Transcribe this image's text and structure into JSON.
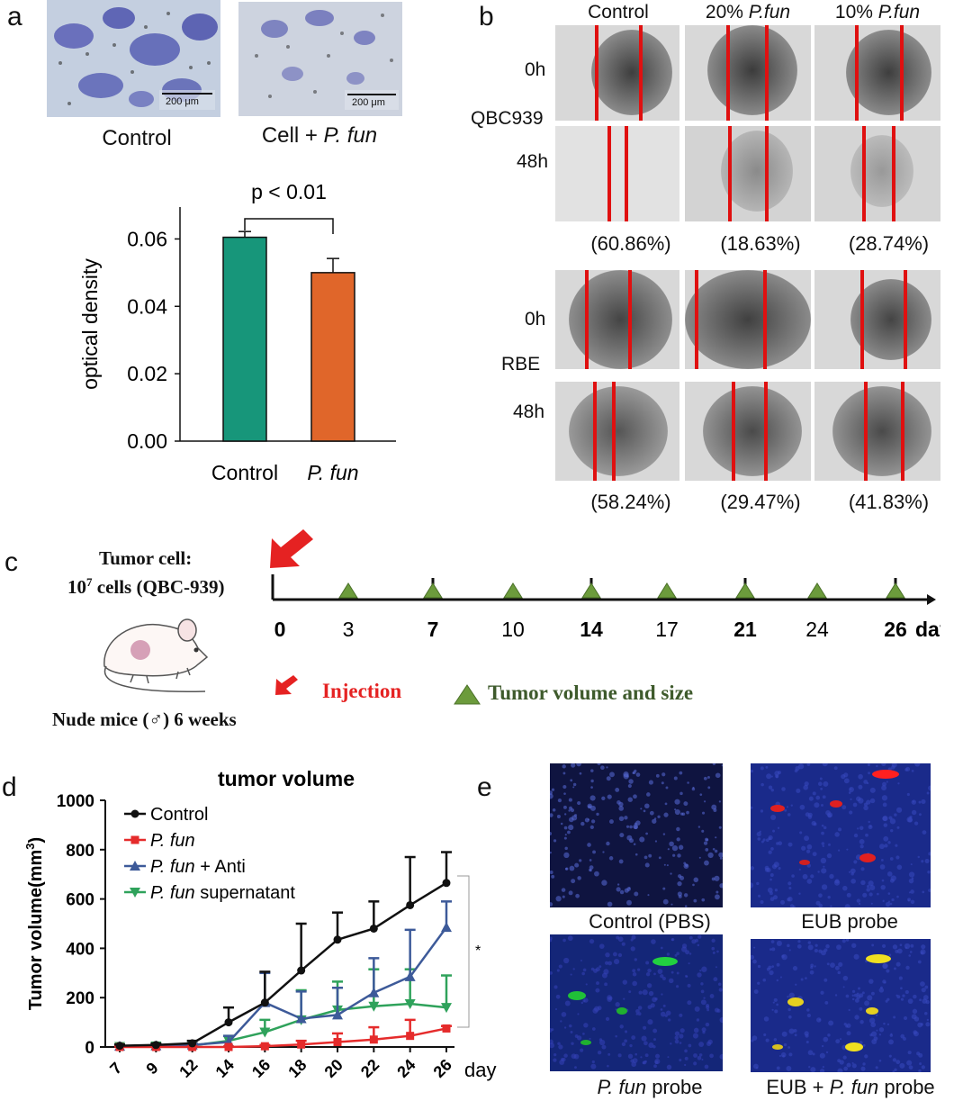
{
  "panels": {
    "a": "a",
    "b": "b",
    "c": "c",
    "d": "d",
    "e": "e"
  },
  "panel_a": {
    "images": [
      {
        "caption": "Control",
        "scale": "200 μm"
      },
      {
        "caption_prefix": "Cell + ",
        "caption_italic": "P. fun",
        "scale": "200 μm"
      }
    ],
    "chart_data": {
      "type": "bar",
      "categories": [
        "Control",
        "P. fun"
      ],
      "values": [
        0.0605,
        0.05
      ],
      "errors": [
        0.0017,
        0.0042
      ],
      "ylabel": "optical density",
      "ylim": [
        0,
        0.07
      ],
      "yticks": [
        "0.00",
        "0.02",
        "0.04",
        "0.06"
      ],
      "annotation": "p < 0.01",
      "colors": [
        "#17967a",
        "#e0662a"
      ]
    }
  },
  "panel_b": {
    "columns": [
      "Control",
      "20% ",
      "10% "
    ],
    "column_italic": [
      "",
      "P.fun",
      "P.fun"
    ],
    "qbc": {
      "cell_line": "QBC939",
      "t0": "0h",
      "t48": "48h",
      "percents": [
        "(60.86%)",
        "(18.63%)",
        "(28.74%)"
      ]
    },
    "rbe": {
      "cell_line": "RBE",
      "t0": "0h",
      "t48": "48h",
      "percents": [
        "(58.24%)",
        "(29.47%)",
        "(41.83%)"
      ]
    }
  },
  "panel_c": {
    "tumor_title": "Tumor cell:",
    "cells_base": "10",
    "cells_exp": "7",
    "cells_rest": " cells (QBC-939)",
    "days": [
      "0",
      "3",
      "7",
      "10",
      "14",
      "17",
      "21",
      "24",
      "26"
    ],
    "days_label": "days",
    "injection": "Injection",
    "tumor_volume": "Tumor volume and size",
    "mice_prefix": "Nude mice (",
    "mice_symbol": "♂",
    "mice_suffix": ") 6 weeks",
    "colors": {
      "injection": "#e52222",
      "triangle": "#6c9b3c",
      "legend_text": "#3e5a2c"
    }
  },
  "panel_d": {
    "chart_data": {
      "type": "line",
      "title": "tumor volume",
      "x": [
        7,
        9,
        12,
        14,
        16,
        18,
        20,
        22,
        24,
        26
      ],
      "xlabel": "day",
      "ylabel_prefix": "Tumor volume(mm",
      "ylabel_exp": "3",
      "ylabel_suffix": ")",
      "ylim": [
        0,
        1000
      ],
      "yticks": [
        0,
        200,
        400,
        600,
        800,
        1000
      ],
      "sig_marker": "*",
      "series": [
        {
          "name": "Control",
          "name_italic": "",
          "name_rest": "Control",
          "color": "#111111",
          "marker": "circle",
          "values": [
            5,
            8,
            15,
            100,
            180,
            310,
            435,
            480,
            575,
            665
          ],
          "errors": [
            5,
            6,
            10,
            60,
            125,
            190,
            110,
            110,
            195,
            125
          ]
        },
        {
          "name": "P. fun",
          "name_italic": "P. fun",
          "name_rest": "",
          "color": "#e52b2b",
          "marker": "square",
          "values": [
            0,
            0,
            0,
            0,
            3,
            10,
            20,
            30,
            45,
            75
          ],
          "errors": [
            2,
            2,
            2,
            2,
            5,
            15,
            35,
            50,
            65,
            10
          ]
        },
        {
          "name": "P. fun + Anti",
          "name_italic": "P. fun",
          "name_rest": " + Anti",
          "color": "#3d5a99",
          "marker": "triangle",
          "values": [
            3,
            5,
            8,
            20,
            180,
            115,
            130,
            220,
            285,
            485
          ],
          "errors": [
            3,
            4,
            6,
            25,
            120,
            110,
            110,
            140,
            190,
            105
          ]
        },
        {
          "name": "P. fun supernatant",
          "name_italic": "P. fun",
          "name_rest": " supernatant",
          "color": "#2fa25b",
          "marker": "triangle-down",
          "values": [
            2,
            4,
            6,
            25,
            60,
            110,
            150,
            165,
            175,
            160
          ],
          "errors": [
            2,
            3,
            5,
            20,
            50,
            120,
            115,
            150,
            140,
            130
          ]
        }
      ]
    }
  },
  "panel_e": {
    "captions": [
      {
        "italic": "",
        "rest": "Control (PBS)"
      },
      {
        "italic": "",
        "rest": "EUB probe"
      },
      {
        "italic": "P. fun",
        "rest": " probe"
      },
      {
        "prefix": "EUB + ",
        "italic": "P. fun",
        "rest": " probe"
      }
    ]
  }
}
